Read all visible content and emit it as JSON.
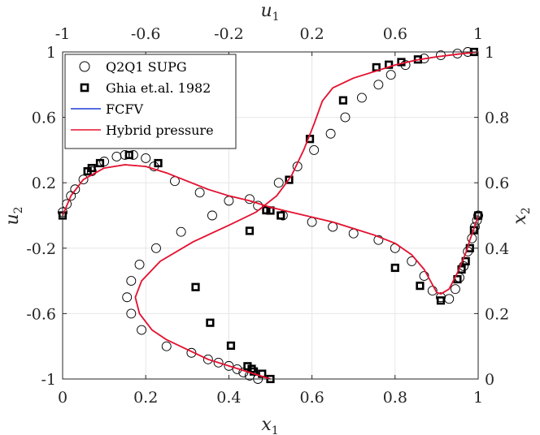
{
  "chart_data": {
    "type": "line",
    "title": "",
    "grid": true,
    "legend_placement": "top-left",
    "axes": {
      "bottom": {
        "label": "x",
        "label_sub": "1",
        "range": [
          0,
          1
        ],
        "ticks": [
          "0",
          "0.2",
          "0.4",
          "0.6",
          "0.8",
          "1"
        ]
      },
      "top": {
        "label": "u",
        "label_sub": "1",
        "range": [
          -1,
          1
        ],
        "ticks": [
          "-1",
          "-0.6",
          "-0.2",
          "0.2",
          "0.6",
          "1"
        ]
      },
      "left": {
        "label": "u",
        "label_sub": "2",
        "range": [
          -1,
          1
        ],
        "ticks": [
          "1",
          "0.6",
          "0.2",
          "-0.2",
          "-0.6",
          "-1"
        ]
      },
      "right": {
        "label": "x",
        "label_sub": "2",
        "range": [
          0,
          1
        ],
        "ticks": [
          "1",
          "0.8",
          "0.6",
          "0.4",
          "0.2",
          "0"
        ]
      }
    },
    "series": [
      {
        "name": "Q2Q1 SUPG",
        "marker": "circle",
        "color": "#000000",
        "curves": [
          {
            "axes": "u1-x2",
            "points": [
              [
                -0.06,
                0.0
              ],
              [
                -0.1,
                0.01
              ],
              [
                -0.13,
                0.02
              ],
              [
                -0.16,
                0.03
              ],
              [
                -0.2,
                0.04
              ],
              [
                -0.25,
                0.05
              ],
              [
                -0.3,
                0.06
              ],
              [
                -0.38,
                0.08
              ],
              [
                -0.5,
                0.1
              ],
              [
                -0.62,
                0.15
              ],
              [
                -0.67,
                0.2
              ],
              [
                -0.69,
                0.25
              ],
              [
                -0.67,
                0.3
              ],
              [
                -0.63,
                0.35
              ],
              [
                -0.55,
                0.4
              ],
              [
                -0.43,
                0.45
              ],
              [
                -0.28,
                0.5
              ],
              [
                -0.1,
                0.55
              ],
              [
                0.04,
                0.6
              ],
              [
                0.13,
                0.65
              ],
              [
                0.21,
                0.7
              ],
              [
                0.29,
                0.75
              ],
              [
                0.36,
                0.8
              ],
              [
                0.44,
                0.86
              ],
              [
                0.52,
                0.9
              ],
              [
                0.58,
                0.93
              ],
              [
                0.65,
                0.96
              ],
              [
                0.74,
                0.98
              ],
              [
                0.82,
                0.99
              ],
              [
                0.9,
                0.995
              ],
              [
                0.95,
                1.0
              ]
            ]
          },
          {
            "axes": "x1-u2",
            "points": [
              [
                0.0,
                0.02
              ],
              [
                0.01,
                0.07
              ],
              [
                0.02,
                0.12
              ],
              [
                0.03,
                0.16
              ],
              [
                0.05,
                0.22
              ],
              [
                0.07,
                0.27
              ],
              [
                0.1,
                0.33
              ],
              [
                0.13,
                0.36
              ],
              [
                0.15,
                0.37
              ],
              [
                0.17,
                0.37
              ],
              [
                0.2,
                0.35
              ],
              [
                0.22,
                0.3
              ],
              [
                0.27,
                0.21
              ],
              [
                0.33,
                0.14
              ],
              [
                0.4,
                0.09
              ],
              [
                0.47,
                0.06
              ],
              [
                0.53,
                0.0
              ],
              [
                0.6,
                -0.04
              ],
              [
                0.65,
                -0.07
              ],
              [
                0.7,
                -0.11
              ],
              [
                0.76,
                -0.15
              ],
              [
                0.8,
                -0.2
              ],
              [
                0.84,
                -0.28
              ],
              [
                0.87,
                -0.37
              ],
              [
                0.89,
                -0.46
              ],
              [
                0.91,
                -0.5
              ],
              [
                0.93,
                -0.51
              ],
              [
                0.945,
                -0.45
              ],
              [
                0.955,
                -0.38
              ],
              [
                0.965,
                -0.31
              ],
              [
                0.975,
                -0.22
              ],
              [
                0.985,
                -0.14
              ],
              [
                0.992,
                -0.07
              ],
              [
                0.997,
                -0.03
              ],
              [
                1.0,
                0.0
              ]
            ]
          }
        ]
      },
      {
        "name": "Ghia et.al. 1982",
        "marker": "square",
        "color": "#000000",
        "curves": [
          {
            "axes": "u1-x2",
            "points": [
              [
                0.0,
                0.0
              ],
              [
                -0.04,
                0.016
              ],
              [
                -0.08,
                0.023
              ],
              [
                -0.09,
                0.031
              ],
              [
                -0.11,
                0.039
              ],
              [
                -0.19,
                0.102
              ],
              [
                -0.29,
                0.172
              ],
              [
                -0.36,
                0.281
              ],
              [
                -0.1,
                0.453
              ],
              [
                -0.02,
                0.516
              ],
              [
                0.05,
                0.5
              ],
              [
                0.09,
                0.609
              ],
              [
                0.19,
                0.734
              ],
              [
                0.35,
                0.852
              ],
              [
                0.51,
                0.953
              ],
              [
                0.57,
                0.961
              ],
              [
                0.63,
                0.969
              ],
              [
                0.71,
                0.977
              ],
              [
                0.98,
                1.0
              ]
            ]
          },
          {
            "axes": "x1-u2",
            "points": [
              [
                0.0,
                0.0
              ],
              [
                0.06,
                0.27
              ],
              [
                0.07,
                0.29
              ],
              [
                0.09,
                0.32
              ],
              [
                0.16,
                0.37
              ],
              [
                0.23,
                0.32
              ],
              [
                0.5,
                0.03
              ],
              [
                0.8,
                -0.32
              ],
              [
                0.86,
                -0.43
              ],
              [
                0.91,
                -0.52
              ],
              [
                0.95,
                -0.39
              ],
              [
                0.96,
                -0.33
              ],
              [
                0.97,
                -0.28
              ],
              [
                0.98,
                -0.2
              ],
              [
                0.99,
                -0.09
              ],
              [
                1.0,
                0.0
              ]
            ]
          }
        ]
      },
      {
        "name": "FCFV",
        "marker": "line",
        "color": "#1f3dd6",
        "curves": [
          {
            "axes": "u1-x2",
            "points": [
              [
                0.0,
                0.0
              ],
              [
                -0.1,
                0.02
              ],
              [
                -0.2,
                0.04
              ],
              [
                -0.3,
                0.06
              ],
              [
                -0.4,
                0.09
              ],
              [
                -0.5,
                0.12
              ],
              [
                -0.57,
                0.15
              ],
              [
                -0.63,
                0.2
              ],
              [
                -0.65,
                0.25
              ],
              [
                -0.62,
                0.3
              ],
              [
                -0.53,
                0.36
              ],
              [
                -0.37,
                0.42
              ],
              [
                -0.2,
                0.47
              ],
              [
                -0.07,
                0.51
              ],
              [
                0.03,
                0.56
              ],
              [
                0.1,
                0.62
              ],
              [
                0.16,
                0.7
              ],
              [
                0.21,
                0.78
              ],
              [
                0.25,
                0.85
              ],
              [
                0.3,
                0.89
              ],
              [
                0.4,
                0.92
              ],
              [
                0.5,
                0.94
              ],
              [
                0.6,
                0.96
              ],
              [
                0.7,
                0.975
              ],
              [
                0.8,
                0.985
              ],
              [
                0.9,
                0.993
              ],
              [
                1.0,
                1.0
              ]
            ]
          },
          {
            "axes": "x1-u2",
            "points": [
              [
                0.0,
                0.0
              ],
              [
                0.02,
                0.12
              ],
              [
                0.05,
                0.22
              ],
              [
                0.1,
                0.29
              ],
              [
                0.15,
                0.31
              ],
              [
                0.2,
                0.3
              ],
              [
                0.25,
                0.26
              ],
              [
                0.3,
                0.21
              ],
              [
                0.35,
                0.16
              ],
              [
                0.4,
                0.12
              ],
              [
                0.45,
                0.09
              ],
              [
                0.5,
                0.05
              ],
              [
                0.55,
                0.02
              ],
              [
                0.6,
                -0.01
              ],
              [
                0.65,
                -0.04
              ],
              [
                0.7,
                -0.08
              ],
              [
                0.75,
                -0.12
              ],
              [
                0.8,
                -0.17
              ],
              [
                0.84,
                -0.24
              ],
              [
                0.87,
                -0.33
              ],
              [
                0.9,
                -0.47
              ],
              [
                0.91,
                -0.48
              ],
              [
                0.93,
                -0.45
              ],
              [
                0.95,
                -0.35
              ],
              [
                0.97,
                -0.23
              ],
              [
                0.98,
                -0.15
              ],
              [
                0.99,
                -0.08
              ],
              [
                1.0,
                0.0
              ]
            ]
          }
        ]
      },
      {
        "name": "Hybrid pressure",
        "marker": "line",
        "color": "#e8112d",
        "curves": [
          {
            "axes": "u1-x2",
            "points": [
              [
                0.0,
                0.0
              ],
              [
                -0.1,
                0.02
              ],
              [
                -0.2,
                0.04
              ],
              [
                -0.3,
                0.06
              ],
              [
                -0.4,
                0.09
              ],
              [
                -0.5,
                0.12
              ],
              [
                -0.57,
                0.15
              ],
              [
                -0.63,
                0.2
              ],
              [
                -0.65,
                0.25
              ],
              [
                -0.62,
                0.3
              ],
              [
                -0.53,
                0.36
              ],
              [
                -0.37,
                0.42
              ],
              [
                -0.2,
                0.47
              ],
              [
                -0.07,
                0.51
              ],
              [
                0.03,
                0.56
              ],
              [
                0.1,
                0.62
              ],
              [
                0.16,
                0.7
              ],
              [
                0.21,
                0.78
              ],
              [
                0.25,
                0.85
              ],
              [
                0.3,
                0.89
              ],
              [
                0.4,
                0.92
              ],
              [
                0.5,
                0.94
              ],
              [
                0.6,
                0.96
              ],
              [
                0.7,
                0.975
              ],
              [
                0.8,
                0.985
              ],
              [
                0.9,
                0.993
              ],
              [
                1.0,
                1.0
              ]
            ]
          },
          {
            "axes": "x1-u2",
            "points": [
              [
                0.0,
                0.0
              ],
              [
                0.02,
                0.12
              ],
              [
                0.05,
                0.22
              ],
              [
                0.1,
                0.29
              ],
              [
                0.15,
                0.31
              ],
              [
                0.2,
                0.3
              ],
              [
                0.25,
                0.26
              ],
              [
                0.3,
                0.21
              ],
              [
                0.35,
                0.16
              ],
              [
                0.4,
                0.12
              ],
              [
                0.45,
                0.09
              ],
              [
                0.5,
                0.05
              ],
              [
                0.55,
                0.02
              ],
              [
                0.6,
                -0.01
              ],
              [
                0.65,
                -0.04
              ],
              [
                0.7,
                -0.08
              ],
              [
                0.75,
                -0.12
              ],
              [
                0.8,
                -0.17
              ],
              [
                0.84,
                -0.24
              ],
              [
                0.87,
                -0.33
              ],
              [
                0.9,
                -0.47
              ],
              [
                0.91,
                -0.48
              ],
              [
                0.93,
                -0.45
              ],
              [
                0.95,
                -0.35
              ],
              [
                0.97,
                -0.23
              ],
              [
                0.98,
                -0.15
              ],
              [
                0.99,
                -0.08
              ],
              [
                1.0,
                0.0
              ]
            ]
          }
        ]
      }
    ]
  }
}
